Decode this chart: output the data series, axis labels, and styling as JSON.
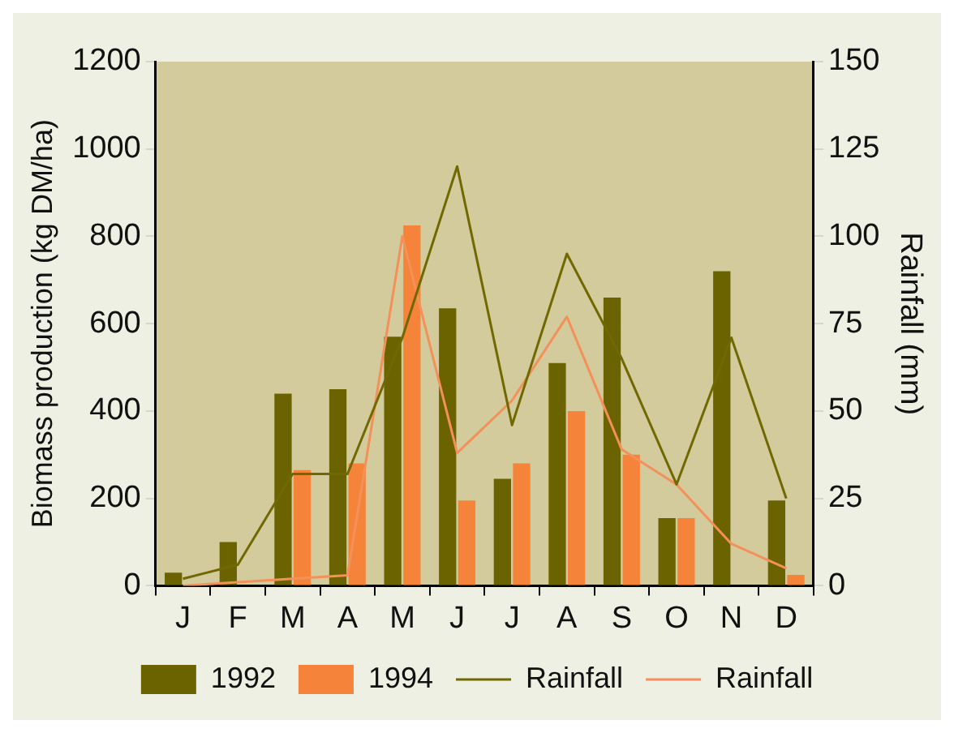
{
  "chart_data": {
    "type": "bar",
    "categories": [
      "J",
      "F",
      "M",
      "A",
      "M",
      "J",
      "J",
      "A",
      "S",
      "O",
      "N",
      "D"
    ],
    "ylabel": "Biomass production (kg DM/ha)",
    "y2label": "Rainfall (mm)",
    "ylim": [
      0,
      1200
    ],
    "yticks": [
      0,
      200,
      400,
      600,
      800,
      1000,
      1200
    ],
    "y2lim": [
      0,
      150
    ],
    "y2ticks": [
      0,
      25,
      50,
      75,
      100,
      125,
      150
    ],
    "grid": false,
    "legend": "bottom",
    "series": [
      {
        "name": "1992",
        "color": "#6b6300",
        "values": [
          30,
          100,
          440,
          450,
          570,
          635,
          245,
          510,
          660,
          155,
          720,
          195
        ]
      },
      {
        "name": "1994",
        "color": "#f5843a",
        "values": [
          null,
          null,
          265,
          280,
          825,
          195,
          280,
          400,
          300,
          155,
          null,
          25
        ]
      },
      {
        "name": "Rainfall",
        "type": "line",
        "axis": "y2",
        "color": "#706800",
        "values": [
          2,
          6,
          32,
          32,
          71,
          120,
          46,
          95,
          65,
          29,
          71,
          25
        ]
      },
      {
        "name": "Rainfall",
        "type": "line",
        "axis": "y2",
        "color": "#f4905a",
        "values": [
          0,
          1,
          2,
          3,
          100,
          38,
          53,
          77,
          39,
          29,
          12,
          5
        ]
      }
    ]
  }
}
